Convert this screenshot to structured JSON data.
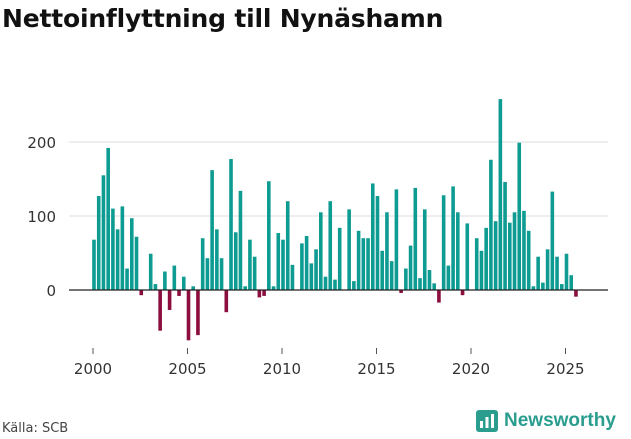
{
  "title": "Nettoinflyttning till Nynäshamn",
  "source": "Källa: SCB",
  "brand": "Newsworthy",
  "colors": {
    "positive": "#0e9c92",
    "negative": "#8b0e3f",
    "brand": "#2a9d8f"
  },
  "chart_data": {
    "type": "bar",
    "title": "Nettoinflyttning till Nynäshamn",
    "xlabel": "",
    "ylabel": "",
    "ylim": [
      -70,
      260
    ],
    "yticks": [
      0,
      100,
      200
    ],
    "xticks": [
      2000,
      2005,
      2010,
      2015,
      2020,
      2025
    ],
    "frequency": "quarterly",
    "start": "2000 Q1",
    "values": [
      68,
      127,
      155,
      192,
      110,
      82,
      113,
      29,
      97,
      72,
      -7,
      0,
      49,
      8,
      -55,
      25,
      -27,
      33,
      -8,
      18,
      -68,
      5,
      -61,
      70,
      43,
      162,
      82,
      43,
      -30,
      177,
      78,
      134,
      5,
      68,
      45,
      -10,
      -8,
      147,
      5,
      77,
      68,
      120,
      34,
      0,
      63,
      73,
      36,
      55,
      105,
      18,
      120,
      14,
      84,
      0,
      109,
      12,
      80,
      70,
      70,
      144,
      127,
      53,
      105,
      39,
      136,
      -4,
      29,
      60,
      138,
      16,
      109,
      27,
      9,
      -17,
      128,
      33,
      140,
      105,
      -7,
      90,
      0,
      70,
      53,
      84,
      176,
      93,
      258,
      146,
      91,
      105,
      199,
      107,
      80,
      5,
      45,
      10,
      55,
      133,
      45,
      8,
      49,
      20,
      -9
    ]
  }
}
